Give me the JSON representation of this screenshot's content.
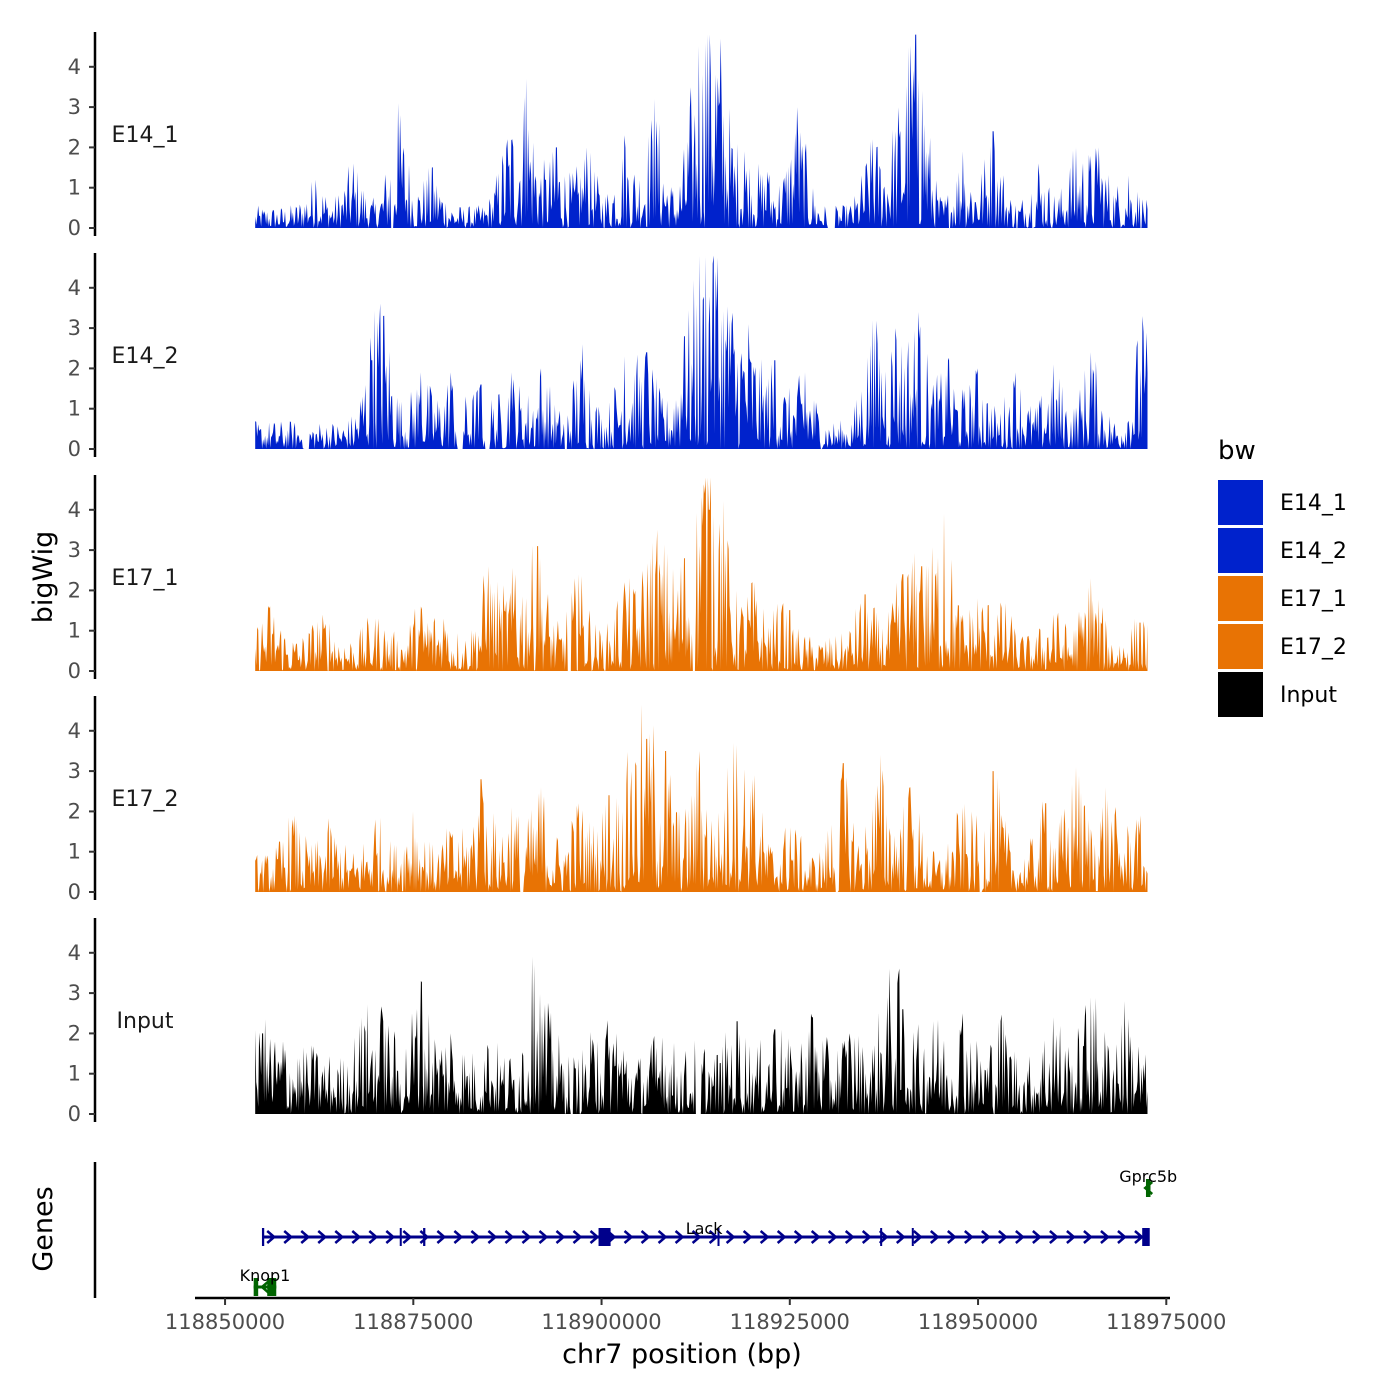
{
  "chart_data": {
    "type": "area",
    "chromosome": "chr7",
    "xlabel": "chr7 position (bp)",
    "ylabel": "bigWig",
    "gene_track_label": "Genes",
    "xlim": [
      118848000,
      118973500
    ],
    "x_ticks": [
      118850000,
      118875000,
      118900000,
      118925000,
      118950000,
      118975000
    ],
    "x_tick_labels": [
      "118850000",
      "118875000",
      "118900000",
      "118925000",
      "118950000",
      "118975000"
    ],
    "data_range": [
      118854000,
      118972500
    ],
    "ylim": [
      0,
      4.8
    ],
    "y_ticks": [
      0,
      1,
      2,
      3,
      4
    ],
    "y_tick_labels": [
      "0",
      "1",
      "2",
      "3",
      "4"
    ],
    "legend": {
      "title": "bw",
      "entries": [
        {
          "label": "E14_1",
          "color": "#0022CC"
        },
        {
          "label": "E14_2",
          "color": "#0022CC"
        },
        {
          "label": "E17_1",
          "color": "#E87304"
        },
        {
          "label": "E17_2",
          "color": "#E87304"
        },
        {
          "label": "Input",
          "color": "#000000"
        }
      ]
    },
    "series": [
      {
        "name": "E14_1",
        "color": "#0022CC",
        "base": 0.35,
        "peaks": [
          [
            118873000,
            3.1
          ],
          [
            118867000,
            1.6
          ],
          [
            118862000,
            1.2
          ],
          [
            118877500,
            1.5
          ],
          [
            118890000,
            3.7
          ],
          [
            118887500,
            2.2
          ],
          [
            118894000,
            2.0
          ],
          [
            118898000,
            2.0
          ],
          [
            118903000,
            2.3
          ],
          [
            118907000,
            3.2
          ],
          [
            118912000,
            2.0
          ],
          [
            118913500,
            3.8
          ],
          [
            118914500,
            3.8
          ],
          [
            118916000,
            3.0
          ],
          [
            118919000,
            1.9
          ],
          [
            118922000,
            1.4
          ],
          [
            118926000,
            3.0
          ],
          [
            118936000,
            2.2
          ],
          [
            118939000,
            2.4
          ],
          [
            118941500,
            3.1
          ],
          [
            118942000,
            3.7
          ],
          [
            118948000,
            1.9
          ],
          [
            118952000,
            2.4
          ],
          [
            118958000,
            1.6
          ],
          [
            118963000,
            2.0
          ],
          [
            118966000,
            2.0
          ],
          [
            118970000,
            1.3
          ]
        ],
        "gaps": [
          [
            118872000,
            118872400
          ],
          [
            118930000,
            118931000
          ],
          [
            118955000,
            118955300
          ]
        ]
      },
      {
        "name": "E14_2",
        "color": "#0022CC",
        "base": 0.45,
        "peaks": [
          [
            118871000,
            3.3
          ],
          [
            118869500,
            2.2
          ],
          [
            118876000,
            1.9
          ],
          [
            118880000,
            1.9
          ],
          [
            118884000,
            1.6
          ],
          [
            118888000,
            1.9
          ],
          [
            118892000,
            2.0
          ],
          [
            118897500,
            2.6
          ],
          [
            118903000,
            2.3
          ],
          [
            118906000,
            2.4
          ],
          [
            118911000,
            2.8
          ],
          [
            118913500,
            3.7
          ],
          [
            118914800,
            4.6
          ],
          [
            118917000,
            3.2
          ],
          [
            118919500,
            3.1
          ],
          [
            118923000,
            2.2
          ],
          [
            118927000,
            1.9
          ],
          [
            118936000,
            3.2
          ],
          [
            118939000,
            3.0
          ],
          [
            118942000,
            3.4
          ],
          [
            118946000,
            2.2
          ],
          [
            118950000,
            2.0
          ],
          [
            118955000,
            1.9
          ],
          [
            118960000,
            2.1
          ],
          [
            118965000,
            2.4
          ],
          [
            118971800,
            3.3
          ]
        ],
        "gaps": [
          [
            118860500,
            118861200
          ],
          [
            118880800,
            118881600
          ],
          [
            118884500,
            118885200
          ],
          [
            118895000,
            118895500
          ]
        ]
      },
      {
        "name": "E17_1",
        "color": "#E87304",
        "base": 0.55,
        "peaks": [
          [
            118856000,
            1.6
          ],
          [
            118863000,
            1.4
          ],
          [
            118870000,
            1.3
          ],
          [
            118876000,
            1.6
          ],
          [
            118879000,
            1.3
          ],
          [
            118885000,
            2.6
          ],
          [
            118888500,
            2.4
          ],
          [
            118891500,
            3.1
          ],
          [
            118897000,
            2.4
          ],
          [
            118903000,
            2.2
          ],
          [
            118906500,
            2.8
          ],
          [
            118908000,
            2.4
          ],
          [
            118911000,
            2.8
          ],
          [
            118913500,
            3.6
          ],
          [
            118914300,
            4.0
          ],
          [
            118916000,
            3.2
          ],
          [
            118920000,
            2.2
          ],
          [
            118924000,
            1.6
          ],
          [
            118935000,
            1.9
          ],
          [
            118940000,
            2.4
          ],
          [
            118942500,
            2.6
          ],
          [
            118945500,
            3.9
          ],
          [
            118950000,
            1.8
          ],
          [
            118953000,
            1.7
          ],
          [
            118960000,
            1.4
          ],
          [
            118965000,
            2.3
          ],
          [
            118971500,
            1.2
          ]
        ],
        "gaps": [
          [
            118895500,
            118896000
          ],
          [
            118912000,
            118912400
          ]
        ]
      },
      {
        "name": "E17_2",
        "color": "#E87304",
        "base": 0.6,
        "peaks": [
          [
            118859000,
            1.8
          ],
          [
            118864000,
            1.6
          ],
          [
            118870000,
            1.8
          ],
          [
            118875000,
            2.0
          ],
          [
            118880000,
            1.4
          ],
          [
            118884000,
            2.8
          ],
          [
            118888000,
            2.1
          ],
          [
            118892000,
            2.6
          ],
          [
            118897000,
            2.2
          ],
          [
            118901000,
            2.4
          ],
          [
            118904000,
            3.0
          ],
          [
            118906000,
            3.8
          ],
          [
            118908500,
            3.5
          ],
          [
            118913000,
            3.5
          ],
          [
            118917500,
            3.7
          ],
          [
            118920000,
            2.8
          ],
          [
            118925000,
            1.6
          ],
          [
            118932000,
            3.2
          ],
          [
            118937000,
            3.4
          ],
          [
            118941000,
            2.6
          ],
          [
            118948000,
            2.1
          ],
          [
            118952000,
            3.0
          ],
          [
            118959000,
            2.2
          ],
          [
            118963000,
            3.1
          ],
          [
            118967000,
            2.6
          ],
          [
            118971000,
            1.8
          ]
        ],
        "gaps": [
          [
            118889200,
            118889600
          ],
          [
            118931000,
            118931400
          ],
          [
            118950200,
            118950600
          ]
        ]
      },
      {
        "name": "Input",
        "color": "#000000",
        "base": 0.9,
        "peaks": [
          [
            118855000,
            2.0
          ],
          [
            118858000,
            1.6
          ],
          [
            118862000,
            1.3
          ],
          [
            118868500,
            2.2
          ],
          [
            118871000,
            2.3
          ],
          [
            118876000,
            3.3
          ],
          [
            118880000,
            2.0
          ],
          [
            118885000,
            1.6
          ],
          [
            118891000,
            3.7
          ],
          [
            118893500,
            1.6
          ],
          [
            118899500,
            1.8
          ],
          [
            118902000,
            2.0
          ],
          [
            118908000,
            1.9
          ],
          [
            118913000,
            1.5
          ],
          [
            118918000,
            2.3
          ],
          [
            118923000,
            2.1
          ],
          [
            118928000,
            2.4
          ],
          [
            118933000,
            2.0
          ],
          [
            118938000,
            2.9
          ],
          [
            118940000,
            2.6
          ],
          [
            118944000,
            2.3
          ],
          [
            118948000,
            2.5
          ],
          [
            118953000,
            2.3
          ],
          [
            118960000,
            2.4
          ],
          [
            118965000,
            2.9
          ],
          [
            118969500,
            2.8
          ]
        ],
        "gaps": [
          [
            118895800,
            118896200
          ],
          [
            118912500,
            118913300
          ]
        ]
      }
    ],
    "genes": [
      {
        "name": "Lack",
        "strand": "+",
        "color": "#00008B",
        "start": 118855000,
        "end": 118972500,
        "row": 2,
        "exons": [
          [
            118854900,
            118855200
          ],
          [
            118873200,
            118873400
          ],
          [
            118876300,
            118876600
          ],
          [
            118899600,
            118901200
          ],
          [
            118915400,
            118915600
          ],
          [
            118937000,
            118937200
          ],
          [
            118941200,
            118941400
          ],
          [
            118971800,
            118972800
          ]
        ]
      },
      {
        "name": "Gprc5b",
        "strand": "-",
        "color": "#006400",
        "start": 118972300,
        "end": 118972900,
        "row": 1,
        "exons": [
          [
            118972300,
            118972900
          ]
        ]
      },
      {
        "name": "Knop1",
        "strand": "-",
        "color": "#006400",
        "start": 118853800,
        "end": 118856800,
        "row": 3,
        "exons": [
          [
            118853800,
            118854400
          ],
          [
            118855600,
            118856800
          ]
        ]
      }
    ]
  }
}
